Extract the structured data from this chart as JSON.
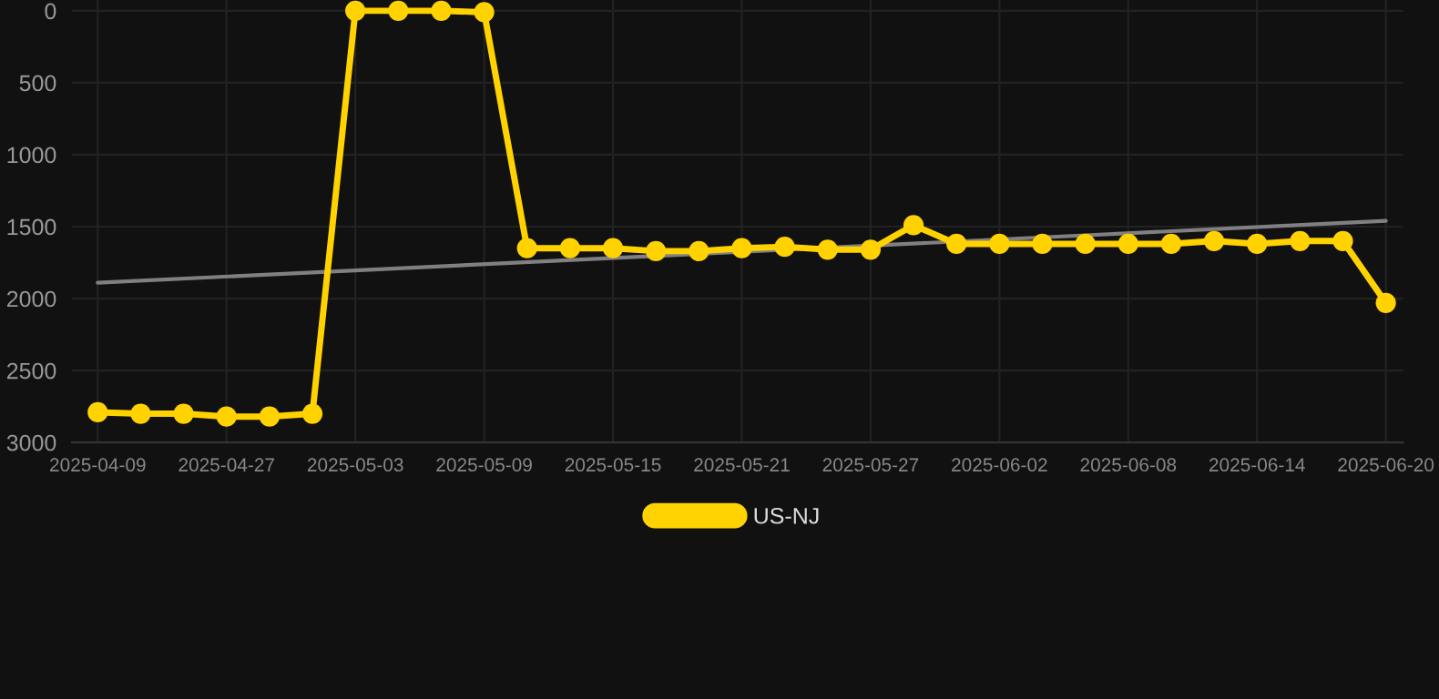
{
  "chart_data": {
    "type": "line",
    "categories": [
      "2025-04-09",
      null,
      null,
      "2025-04-27",
      null,
      null,
      "2025-05-03",
      null,
      null,
      "2025-05-09",
      null,
      null,
      "2025-05-15",
      null,
      null,
      "2025-05-21",
      null,
      null,
      "2025-05-27",
      null,
      null,
      "2025-06-02",
      null,
      null,
      "2025-06-08",
      null,
      null,
      "2025-06-14",
      null,
      null,
      "2025-06-20"
    ],
    "series": [
      {
        "name": "US-NJ",
        "color": "#ffd200",
        "marker": "circle",
        "values": [
          2790,
          2800,
          2800,
          2820,
          2820,
          2800,
          0,
          0,
          0,
          10,
          1650,
          1650,
          1650,
          1670,
          1670,
          1650,
          1640,
          1660,
          1660,
          1490,
          1620,
          1620,
          1620,
          1620,
          1620,
          1620,
          1600,
          1620,
          1600,
          1600,
          2030
        ]
      },
      {
        "color": "#808080",
        "marker": "none",
        "values": [
          1890,
          null,
          null,
          null,
          null,
          null,
          null,
          null,
          null,
          null,
          null,
          null,
          null,
          null,
          null,
          null,
          null,
          null,
          null,
          null,
          null,
          null,
          null,
          null,
          null,
          null,
          null,
          null,
          null,
          null,
          1460
        ]
      }
    ],
    "ylim": [
      3000,
      -75
    ],
    "yticks": [
      0,
      500,
      1000,
      1500,
      2000,
      2500,
      3000
    ],
    "grid": true,
    "legend": "bottom"
  }
}
